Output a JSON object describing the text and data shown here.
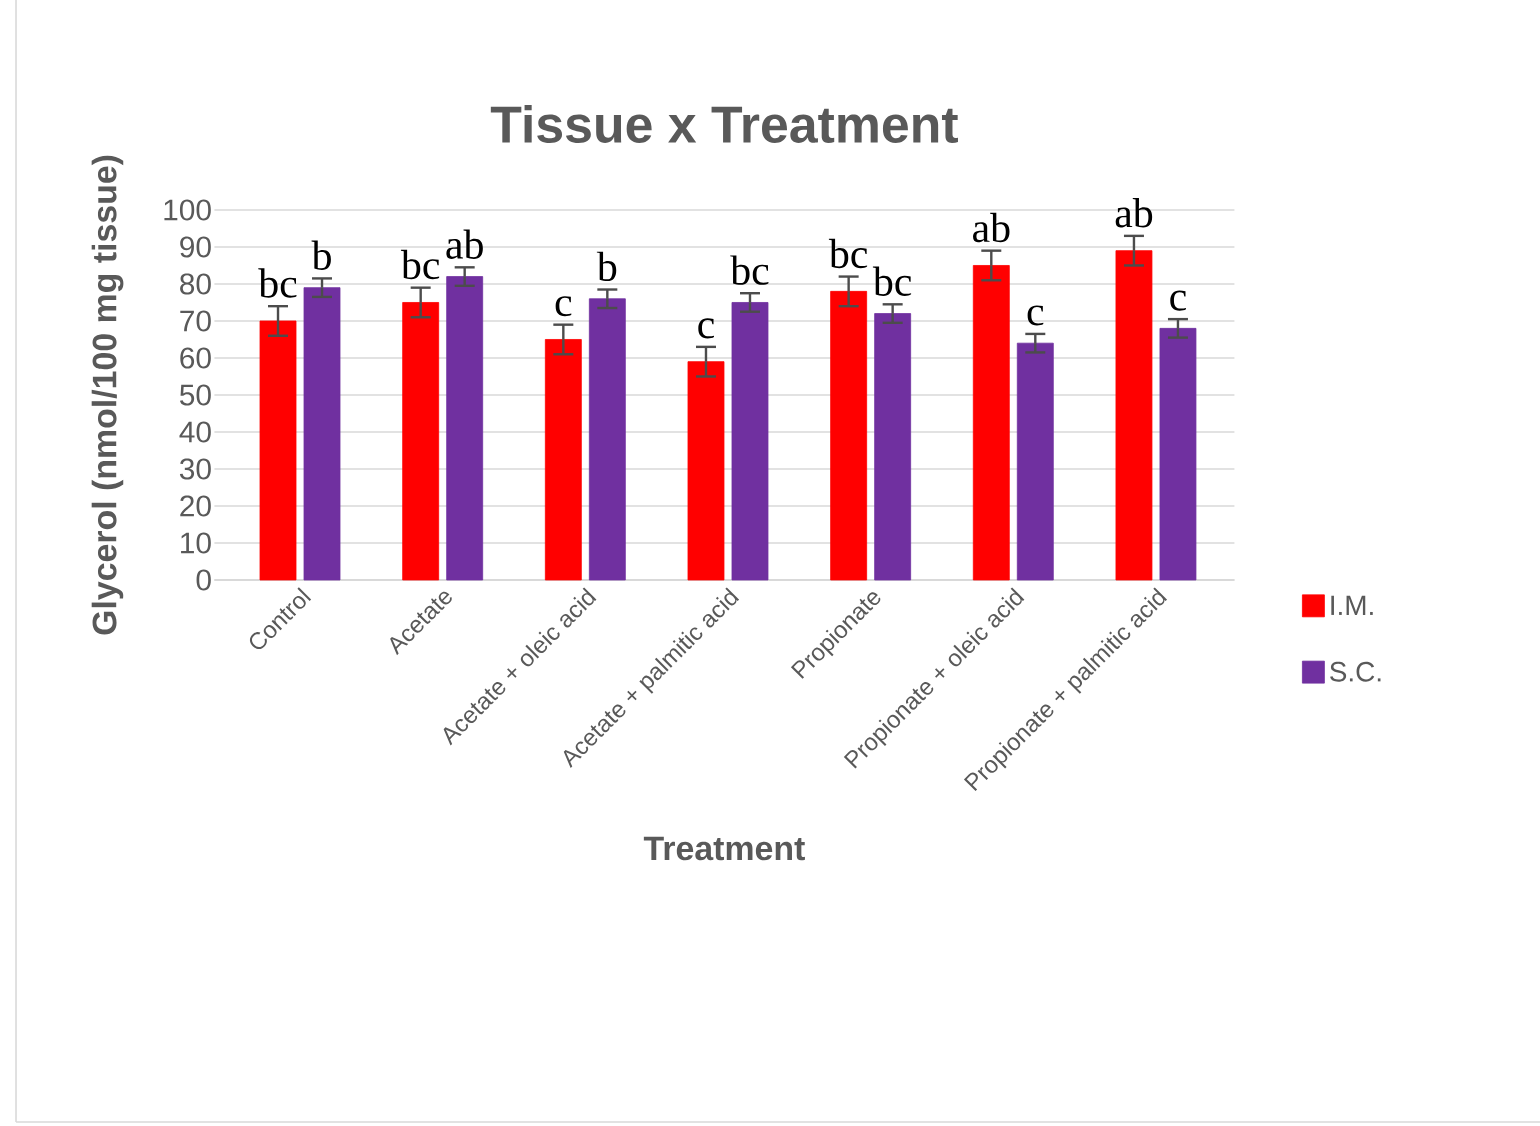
{
  "chart_data": {
    "type": "bar",
    "title": "Tissue x Treatment",
    "xlabel": "Treatment",
    "ylabel": "Glycerol (nmol/100 mg tissue)",
    "categories": [
      "Control",
      "Acetate",
      "Acetate + oleic acid",
      "Acetate + palmitic acid",
      "Propionate",
      "Propionate + oleic acid",
      "Propionate + palmitic acid"
    ],
    "series": [
      {
        "name": "I.M.",
        "color": "#ff0000",
        "values": [
          70,
          75,
          65,
          59,
          78,
          85,
          89
        ],
        "errors": [
          4,
          4,
          4,
          4,
          4,
          4,
          4
        ]
      },
      {
        "name": "S.C.",
        "color": "#7030a0",
        "values": [
          79,
          82,
          76,
          75,
          72,
          64,
          68
        ],
        "errors": [
          2.5,
          2.5,
          2.5,
          2.5,
          2.5,
          2.5,
          2.5
        ]
      }
    ],
    "ylim": [
      0,
      100
    ],
    "yticks": [
      0,
      10,
      20,
      30,
      40,
      50,
      60,
      70,
      80,
      90,
      100
    ],
    "grid": "y",
    "legend": "right",
    "annotations": [
      "bc",
      "b",
      "bc",
      "ab",
      "c",
      "b",
      "c",
      "bc",
      "bc",
      "bc",
      "ab",
      "c",
      "ab",
      "c"
    ]
  }
}
